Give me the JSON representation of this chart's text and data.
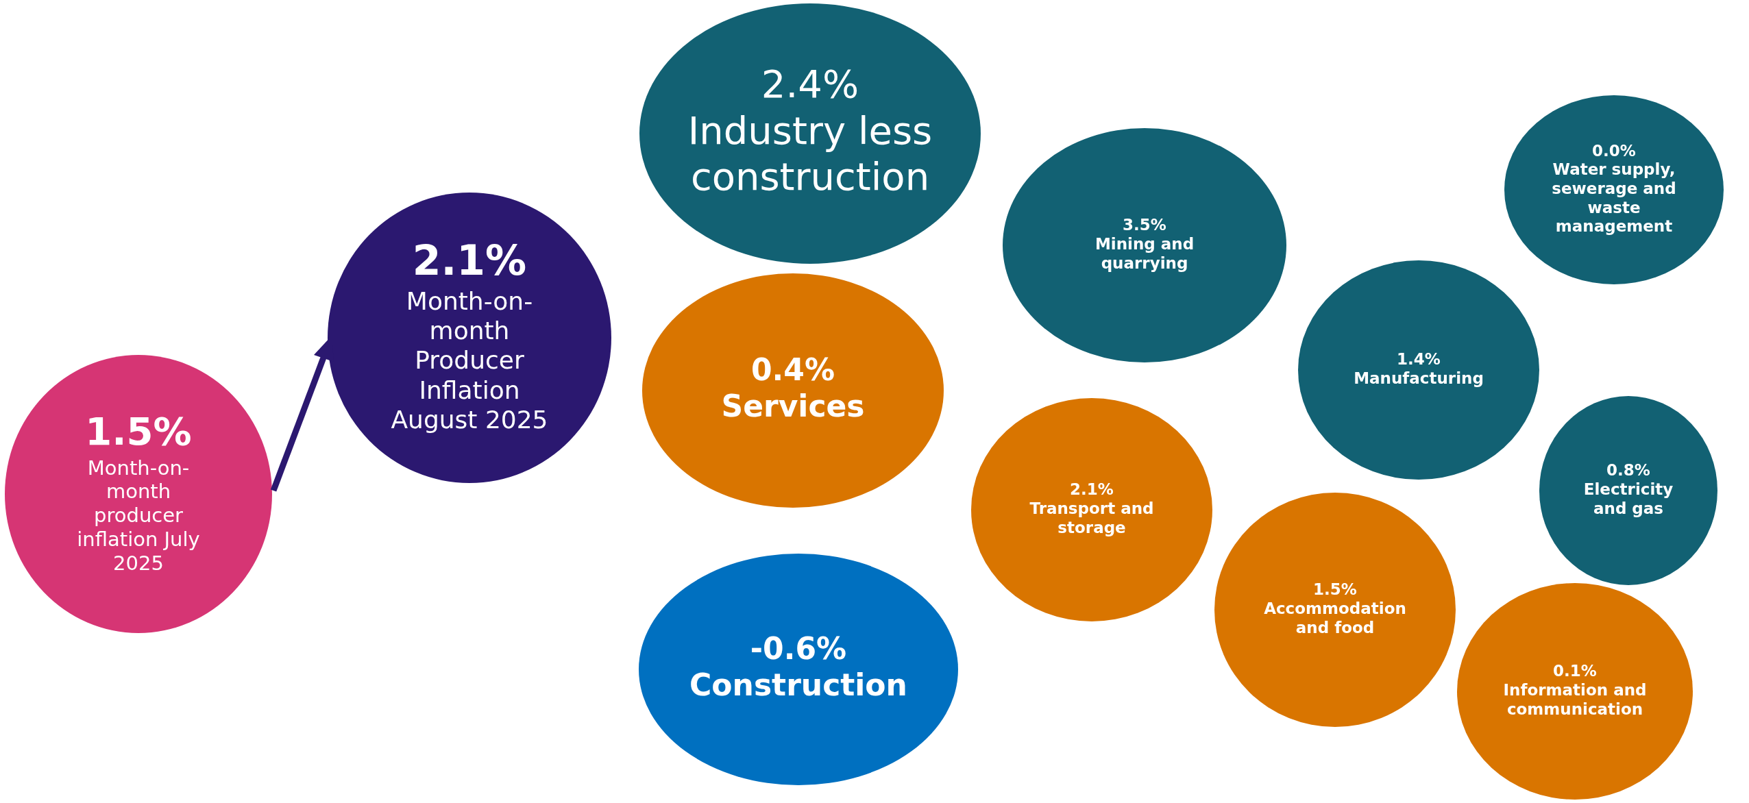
{
  "chart_data": {
    "type": "other",
    "categories": [
      "Month-on-month producer inflation July 2025",
      "Month-on-month Producer Inflation August 2025",
      "Industry less construction",
      "Services",
      "Construction",
      "Mining and quarrying",
      "Water supply, sewerage and waste management",
      "Manufacturing",
      "Electricity and gas",
      "Transport and storage",
      "Accommodation and food",
      "Information and communication"
    ],
    "values": [
      1.5,
      2.1,
      2.4,
      0.4,
      -0.6,
      3.5,
      0.0,
      1.4,
      0.8,
      2.1,
      1.5,
      0.1
    ],
    "value_labels": [
      "1.5%",
      "2.1%",
      "2.4%",
      "0.4%",
      "-0.6%",
      "3.5%",
      "0.0%",
      "1.4%",
      "0.8%",
      "2.1%",
      "1.5%",
      "0.1%"
    ],
    "colors": [
      "#d63574",
      "#2b1870",
      "#126173",
      "#d97500",
      "#0070c0",
      "#126173",
      "#126173",
      "#126173",
      "#126173",
      "#d97500",
      "#d97500",
      "#d97500"
    ]
  }
}
